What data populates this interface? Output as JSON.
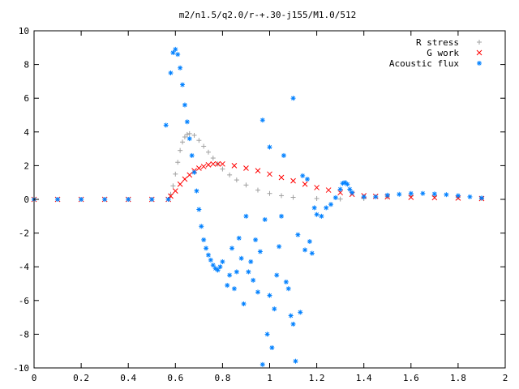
{
  "chart_data": {
    "type": "scatter",
    "title": "m2/n1.5/q2.0/r-+.30-j155/M1.0/512",
    "xlabel": "",
    "ylabel": "",
    "xlim": [
      0,
      2
    ],
    "ylim": [
      -10,
      10
    ],
    "x_ticks": [
      "0",
      "0.2",
      "0.4",
      "0.6",
      "0.8",
      "1",
      "1.2",
      "1.4",
      "1.6",
      "1.8",
      "2"
    ],
    "y_ticks": [
      "10",
      "8",
      "6",
      "4",
      "2",
      "0",
      "-2",
      "-4",
      "-6",
      "-8",
      "-10"
    ],
    "grid": false,
    "legend_position": "top-right",
    "series": [
      {
        "name": "R stress",
        "marker": "+",
        "color": "#a0a0a0",
        "points": [
          [
            0.0,
            0.0
          ],
          [
            0.1,
            0.0
          ],
          [
            0.2,
            0.0
          ],
          [
            0.3,
            0.0
          ],
          [
            0.4,
            0.0
          ],
          [
            0.5,
            0.0
          ],
          [
            0.57,
            0.0
          ],
          [
            0.58,
            0.3
          ],
          [
            0.59,
            0.8
          ],
          [
            0.6,
            1.5
          ],
          [
            0.61,
            2.2
          ],
          [
            0.62,
            2.9
          ],
          [
            0.63,
            3.4
          ],
          [
            0.64,
            3.7
          ],
          [
            0.65,
            3.85
          ],
          [
            0.66,
            3.9
          ],
          [
            0.68,
            3.8
          ],
          [
            0.7,
            3.5
          ],
          [
            0.72,
            3.15
          ],
          [
            0.74,
            2.8
          ],
          [
            0.76,
            2.45
          ],
          [
            0.78,
            2.1
          ],
          [
            0.8,
            1.8
          ],
          [
            0.83,
            1.45
          ],
          [
            0.86,
            1.15
          ],
          [
            0.9,
            0.85
          ],
          [
            0.95,
            0.55
          ],
          [
            1.0,
            0.35
          ],
          [
            1.05,
            0.22
          ],
          [
            1.1,
            0.12
          ],
          [
            1.2,
            0.05
          ],
          [
            1.3,
            0.02
          ],
          [
            1.4,
            0.05
          ],
          [
            1.5,
            0.15
          ],
          [
            1.6,
            0.2
          ],
          [
            1.7,
            0.18
          ],
          [
            1.8,
            0.12
          ],
          [
            1.9,
            0.05
          ]
        ]
      },
      {
        "name": "G work",
        "marker": "x",
        "color": "#ff0000",
        "points": [
          [
            0.0,
            0.0
          ],
          [
            0.1,
            0.0
          ],
          [
            0.2,
            0.0
          ],
          [
            0.3,
            0.0
          ],
          [
            0.4,
            0.0
          ],
          [
            0.5,
            0.0
          ],
          [
            0.57,
            0.0
          ],
          [
            0.58,
            0.2
          ],
          [
            0.6,
            0.5
          ],
          [
            0.62,
            0.9
          ],
          [
            0.64,
            1.2
          ],
          [
            0.66,
            1.45
          ],
          [
            0.68,
            1.7
          ],
          [
            0.7,
            1.85
          ],
          [
            0.72,
            1.95
          ],
          [
            0.74,
            2.05
          ],
          [
            0.76,
            2.1
          ],
          [
            0.78,
            2.1
          ],
          [
            0.8,
            2.1
          ],
          [
            0.85,
            2.0
          ],
          [
            0.9,
            1.85
          ],
          [
            0.95,
            1.7
          ],
          [
            1.0,
            1.5
          ],
          [
            1.05,
            1.3
          ],
          [
            1.1,
            1.1
          ],
          [
            1.15,
            0.9
          ],
          [
            1.2,
            0.7
          ],
          [
            1.25,
            0.55
          ],
          [
            1.3,
            0.4
          ],
          [
            1.35,
            0.3
          ],
          [
            1.4,
            0.22
          ],
          [
            1.45,
            0.18
          ],
          [
            1.5,
            0.15
          ],
          [
            1.6,
            0.12
          ],
          [
            1.7,
            0.1
          ],
          [
            1.8,
            0.08
          ],
          [
            1.9,
            0.05
          ]
        ]
      },
      {
        "name": "Acoustic flux",
        "marker": "*",
        "color": "#0080ff",
        "points": [
          [
            0.0,
            0.0
          ],
          [
            0.1,
            0.0
          ],
          [
            0.2,
            0.0
          ],
          [
            0.3,
            0.0
          ],
          [
            0.4,
            0.0
          ],
          [
            0.5,
            0.0
          ],
          [
            0.57,
            0.0
          ],
          [
            0.56,
            4.4
          ],
          [
            0.58,
            7.5
          ],
          [
            0.59,
            8.7
          ],
          [
            0.6,
            8.9
          ],
          [
            0.61,
            8.6
          ],
          [
            0.62,
            7.8
          ],
          [
            0.63,
            6.8
          ],
          [
            0.64,
            5.6
          ],
          [
            0.65,
            4.6
          ],
          [
            0.66,
            3.6
          ],
          [
            0.67,
            2.6
          ],
          [
            0.68,
            1.6
          ],
          [
            0.69,
            0.5
          ],
          [
            0.7,
            -0.6
          ],
          [
            0.71,
            -1.6
          ],
          [
            0.72,
            -2.4
          ],
          [
            0.73,
            -2.9
          ],
          [
            0.74,
            -3.3
          ],
          [
            0.75,
            -3.6
          ],
          [
            0.76,
            -3.9
          ],
          [
            0.77,
            -4.1
          ],
          [
            0.78,
            -4.2
          ],
          [
            0.79,
            -4.0
          ],
          [
            0.8,
            -3.7
          ],
          [
            0.82,
            -5.1
          ],
          [
            0.83,
            -4.5
          ],
          [
            0.84,
            -2.9
          ],
          [
            0.85,
            -5.3
          ],
          [
            0.86,
            -4.3
          ],
          [
            0.87,
            -2.3
          ],
          [
            0.88,
            -3.5
          ],
          [
            0.89,
            -6.2
          ],
          [
            0.9,
            -1.0
          ],
          [
            0.91,
            -4.3
          ],
          [
            0.92,
            -3.7
          ],
          [
            0.93,
            -4.8
          ],
          [
            0.94,
            -2.4
          ],
          [
            0.95,
            -5.5
          ],
          [
            0.96,
            -3.1
          ],
          [
            0.97,
            4.7
          ],
          [
            0.97,
            -9.8
          ],
          [
            0.98,
            -1.2
          ],
          [
            0.99,
            -8.0
          ],
          [
            1.0,
            3.1
          ],
          [
            1.0,
            -5.7
          ],
          [
            1.01,
            -8.8
          ],
          [
            1.02,
            -6.5
          ],
          [
            1.03,
            -4.5
          ],
          [
            1.04,
            -2.8
          ],
          [
            1.05,
            -1.0
          ],
          [
            1.06,
            2.6
          ],
          [
            1.07,
            -4.9
          ],
          [
            1.08,
            -5.3
          ],
          [
            1.09,
            -6.9
          ],
          [
            1.1,
            -7.4
          ],
          [
            1.1,
            6.0
          ],
          [
            1.11,
            -9.6
          ],
          [
            1.12,
            -2.1
          ],
          [
            1.13,
            -6.7
          ],
          [
            1.14,
            1.4
          ],
          [
            1.15,
            -3.0
          ],
          [
            1.16,
            1.2
          ],
          [
            1.17,
            -2.5
          ],
          [
            1.18,
            -3.2
          ],
          [
            1.19,
            -0.5
          ],
          [
            1.2,
            -0.9
          ],
          [
            1.22,
            -1.0
          ],
          [
            1.24,
            -0.5
          ],
          [
            1.26,
            -0.3
          ],
          [
            1.28,
            0.1
          ],
          [
            1.3,
            0.6
          ],
          [
            1.31,
            0.95
          ],
          [
            1.32,
            1.0
          ],
          [
            1.33,
            0.9
          ],
          [
            1.34,
            0.6
          ],
          [
            1.35,
            0.4
          ],
          [
            1.4,
            0.15
          ],
          [
            1.45,
            0.15
          ],
          [
            1.5,
            0.25
          ],
          [
            1.55,
            0.3
          ],
          [
            1.6,
            0.35
          ],
          [
            1.65,
            0.35
          ],
          [
            1.7,
            0.32
          ],
          [
            1.75,
            0.28
          ],
          [
            1.8,
            0.22
          ],
          [
            1.85,
            0.15
          ],
          [
            1.9,
            0.08
          ]
        ]
      }
    ]
  }
}
